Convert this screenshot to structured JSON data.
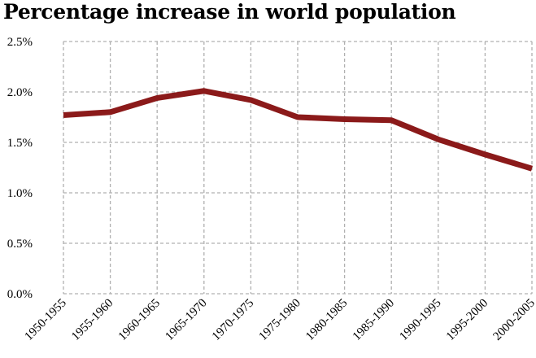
{
  "chart_data": {
    "type": "line",
    "title": "Percentage increase in world population",
    "xlabel": "",
    "ylabel": "",
    "categories": [
      "1950-1955",
      "1955-1960",
      "1960-1965",
      "1965-1970",
      "1970-1975",
      "1975-1980",
      "1980-1985",
      "1985-1990",
      "1990-1995",
      "1995-2000",
      "2000-2005"
    ],
    "series": [
      {
        "values": [
          1.77,
          1.8,
          1.94,
          2.01,
          1.92,
          1.75,
          1.73,
          1.72,
          1.53,
          1.38,
          1.24
        ]
      }
    ],
    "ylim": [
      0,
      2.5
    ],
    "yticks": [
      0.0,
      0.5,
      1.0,
      1.5,
      2.0,
      2.5
    ],
    "ytick_labels": [
      "0.0%",
      "0.5%",
      "1.0%",
      "1.5%",
      "2.0%",
      "2.5%"
    ],
    "grid": true,
    "grid_style": "dashed",
    "legend": "none",
    "colors": {
      "line": "#8b1a1a",
      "grid": "#b0b0b0"
    }
  }
}
